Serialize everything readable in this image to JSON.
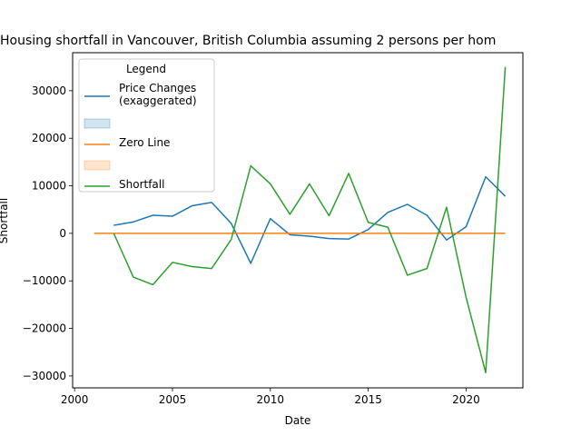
{
  "chart_data": {
    "type": "line",
    "title": "Housing shortfall in Vancouver, British Columbia assuming 2 persons per hom",
    "xlabel": "Date",
    "ylabel": "Shortfall",
    "xlim": [
      1999.9,
      2022.9
    ],
    "ylim": [
      -32500,
      38000
    ],
    "xticks": [
      2000,
      2005,
      2010,
      2015,
      2020
    ],
    "yticks": [
      -30000,
      -20000,
      -10000,
      0,
      10000,
      20000,
      30000
    ],
    "grid": false,
    "legend": {
      "title": "Legend",
      "placement": "upper-left",
      "entries": [
        {
          "label": "Price Changes\n(exaggerated)",
          "kind": "line",
          "color": "#1f77b4"
        },
        {
          "label": "",
          "kind": "patch",
          "color": "#1f77b4"
        },
        {
          "label": "Zero Line",
          "kind": "line",
          "color": "#ff7f0e"
        },
        {
          "label": "",
          "kind": "patch",
          "color": "#ff7f0e"
        },
        {
          "label": "Shortfall",
          "kind": "line",
          "color": "#2ca02c"
        }
      ]
    },
    "series": [
      {
        "name": "Price Changes\n(exaggerated)",
        "color": "#1f77b4",
        "x": [
          2002,
          2003,
          2004,
          2005,
          2006,
          2007,
          2008,
          2009,
          2010,
          2011,
          2012,
          2013,
          2014,
          2015,
          2016,
          2017,
          2018,
          2019,
          2020,
          2021,
          2022
        ],
        "y": [
          1700,
          2400,
          3800,
          3600,
          5800,
          6500,
          2100,
          -6300,
          3100,
          -300,
          -600,
          -1100,
          -1200,
          800,
          4400,
          6100,
          3800,
          -1400,
          1400,
          11900,
          7800
        ]
      },
      {
        "name": "Zero Line",
        "color": "#ff7f0e",
        "x": [
          2001,
          2022
        ],
        "y": [
          0,
          0
        ]
      },
      {
        "name": "Shortfall",
        "color": "#2ca02c",
        "x": [
          2002,
          2003,
          2004,
          2005,
          2006,
          2007,
          2008,
          2009,
          2010,
          2011,
          2012,
          2013,
          2014,
          2015,
          2016,
          2017,
          2018,
          2019,
          2020,
          2021,
          2022
        ],
        "y": [
          0,
          -9200,
          -10800,
          -6100,
          -7000,
          -7400,
          -1300,
          14200,
          10400,
          4000,
          10400,
          3700,
          12600,
          2300,
          1300,
          -8800,
          -7400,
          5500,
          -13500,
          -29300,
          35000
        ]
      }
    ]
  }
}
